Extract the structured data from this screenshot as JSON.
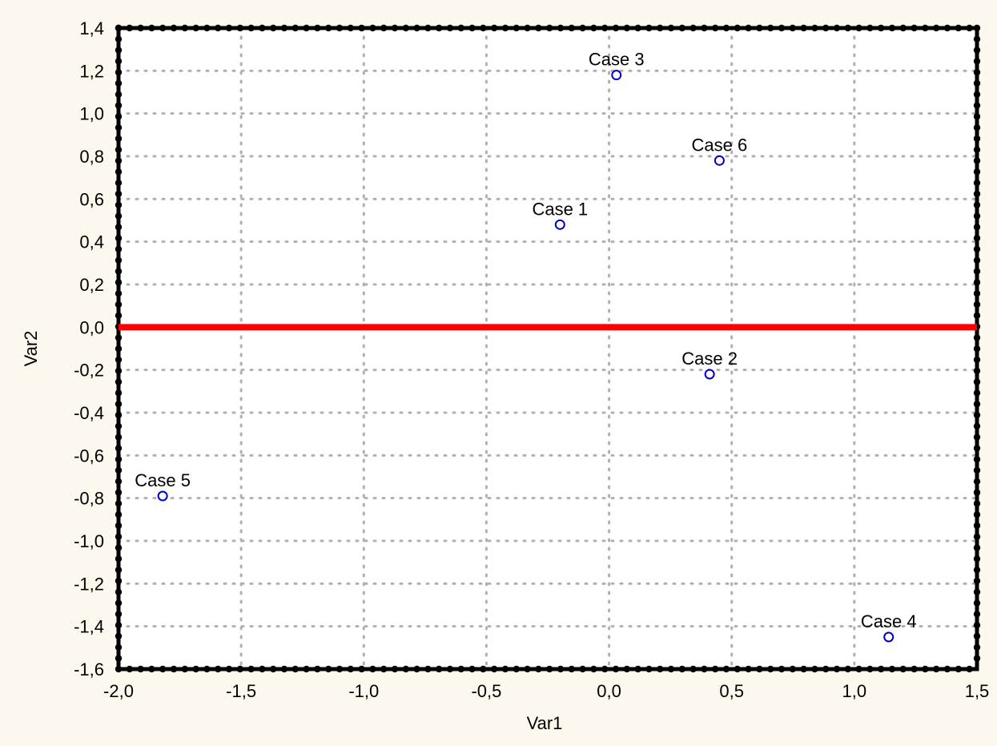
{
  "colors": {
    "background": "#fdf8ee",
    "plot_area": "#ffffff",
    "frame": "#000000",
    "grid": "#b0b0b0",
    "reference_line": "#ff0000",
    "point_stroke": "#0000cc"
  },
  "chart_data": {
    "type": "scatter",
    "title": "",
    "xlabel": "Var1",
    "ylabel": "Var2",
    "xlim": [
      -2.0,
      1.5
    ],
    "ylim": [
      -1.6,
      1.4
    ],
    "x_ticks": [
      -2.0,
      -1.5,
      -1.0,
      -0.5,
      0.0,
      0.5,
      1.0,
      1.5
    ],
    "x_tick_labels": [
      "-2,0",
      "-1,5",
      "-1,0",
      "-0,5",
      "0,0",
      "0,5",
      "1,0",
      "1,5"
    ],
    "y_ticks": [
      1.4,
      1.2,
      1.0,
      0.8,
      0.6,
      0.4,
      0.2,
      0.0,
      -0.2,
      -0.4,
      -0.6,
      -0.8,
      -1.0,
      -1.2,
      -1.4,
      -1.6
    ],
    "y_tick_labels": [
      "1,4",
      "1,2",
      "1,0",
      "0,8",
      "0,6",
      "0,4",
      "0,2",
      "0,0",
      "-0,2",
      "-0,4",
      "-0,6",
      "-0,8",
      "-1,0",
      "-1,2",
      "-1,4",
      "-1,6"
    ],
    "grid": true,
    "reference_line": {
      "axis": "y",
      "value": 0.0
    },
    "points": [
      {
        "label": "Case 1",
        "x": -0.2,
        "y": 0.48
      },
      {
        "label": "Case 2",
        "x": 0.41,
        "y": -0.22
      },
      {
        "label": "Case 3",
        "x": 0.03,
        "y": 1.18
      },
      {
        "label": "Case 4",
        "x": 1.14,
        "y": -1.45
      },
      {
        "label": "Case 5",
        "x": -1.82,
        "y": -0.79
      },
      {
        "label": "Case 6",
        "x": 0.45,
        "y": 0.78
      }
    ]
  }
}
